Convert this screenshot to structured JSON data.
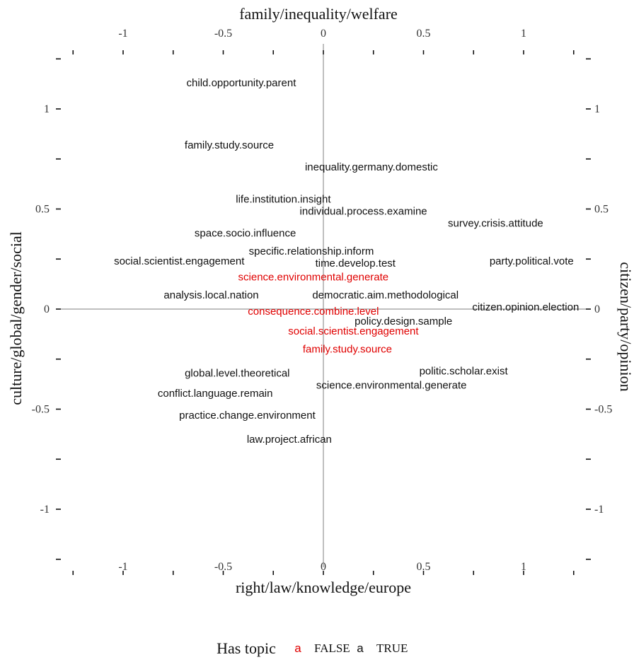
{
  "chart_data": {
    "type": "scatter",
    "title": "",
    "xlabel": "right/law/knowledge/europe",
    "x2label": "family/inequality/welfare",
    "ylabel": "culture/global/gender/social",
    "y2label": "citizen/party/opinion",
    "xlim": [
      -1.25,
      1.25
    ],
    "ylim": [
      -1.25,
      1.25
    ],
    "xticks": [
      "-1",
      "-0.5",
      "0",
      "0.5",
      "1"
    ],
    "xtick_values": [
      -1,
      -0.5,
      0,
      0.5,
      1
    ],
    "yticks": [
      "1",
      "0.5",
      "0",
      "-0.5",
      "-1"
    ],
    "ytick_values": [
      1,
      0.5,
      0,
      -0.5,
      -1
    ],
    "yticks_right": [
      "1",
      "0.5",
      "0",
      "-0.5",
      "-1"
    ],
    "grid": false,
    "legend": {
      "title": "Has topic",
      "placement": "bottom",
      "entries": [
        {
          "label": "FALSE",
          "glyph": "a",
          "color": "#e00000"
        },
        {
          "label": "TRUE",
          "glyph": "a",
          "color": "#111111"
        }
      ]
    },
    "series": [
      {
        "name": "FALSE",
        "color": "#e00000",
        "points": [
          {
            "label": "science.environmental.generate",
            "x": -0.05,
            "y": 0.16
          },
          {
            "label": "consequence.combine.level",
            "x": -0.05,
            "y": -0.01
          },
          {
            "label": "social.scientist.engagement",
            "x": 0.15,
            "y": -0.11
          },
          {
            "label": "family.study.source",
            "x": 0.12,
            "y": -0.2
          }
        ]
      },
      {
        "name": "TRUE",
        "color": "#111111",
        "points": [
          {
            "label": "child.opportunity.parent",
            "x": -0.41,
            "y": 1.13
          },
          {
            "label": "family.study.source",
            "x": -0.47,
            "y": 0.82
          },
          {
            "label": "inequality.germany.domestic",
            "x": 0.24,
            "y": 0.71
          },
          {
            "label": "life.institution.insight",
            "x": -0.2,
            "y": 0.55
          },
          {
            "label": "individual.process.examine",
            "x": 0.2,
            "y": 0.49
          },
          {
            "label": "survey.crisis.attitude",
            "x": 0.86,
            "y": 0.43
          },
          {
            "label": "space.socio.influence",
            "x": -0.39,
            "y": 0.38
          },
          {
            "label": "specific.relationship.inform",
            "x": -0.06,
            "y": 0.29
          },
          {
            "label": "social.scientist.engagement",
            "x": -0.72,
            "y": 0.24
          },
          {
            "label": "time.develop.test",
            "x": 0.16,
            "y": 0.23
          },
          {
            "label": "party.political.vote",
            "x": 1.04,
            "y": 0.24
          },
          {
            "label": "analysis.local.nation",
            "x": -0.56,
            "y": 0.07
          },
          {
            "label": "democratic.aim.methodological",
            "x": 0.31,
            "y": 0.07
          },
          {
            "label": "citizen.opinion.election",
            "x": 1.01,
            "y": 0.01
          },
          {
            "label": "policy.design.sample",
            "x": 0.4,
            "y": -0.06
          },
          {
            "label": "politic.scholar.exist",
            "x": 0.7,
            "y": -0.31
          },
          {
            "label": "global.level.theoretical",
            "x": -0.43,
            "y": -0.32
          },
          {
            "label": "science.environmental.generate",
            "x": 0.34,
            "y": -0.38
          },
          {
            "label": "conflict.language.remain",
            "x": -0.54,
            "y": -0.42
          },
          {
            "label": "practice.change.environment",
            "x": -0.38,
            "y": -0.53
          },
          {
            "label": "law.project.african",
            "x": -0.17,
            "y": -0.65
          }
        ]
      }
    ]
  }
}
